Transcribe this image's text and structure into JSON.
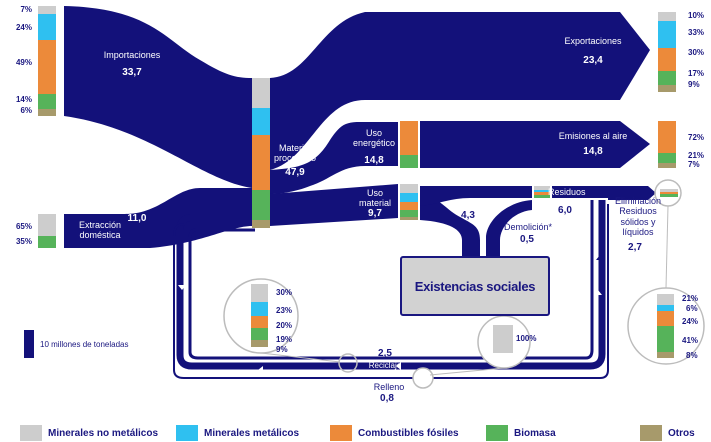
{
  "colors": {
    "flow": "#13117a",
    "minerales_no_metalicos": "#cdcdcd",
    "minerales_metalicos": "#2fc0f0",
    "combustibles_fosiles": "#ec8a3a",
    "biomasa": "#56b35a",
    "otros": "#a79a6b"
  },
  "nodes": {
    "importaciones": {
      "label": "Importaciones",
      "value": "33,7"
    },
    "extraccion": {
      "label": "Extracción doméstica",
      "value": "11,0"
    },
    "material_procesado": {
      "label": "Material procesado",
      "value": "47,9"
    },
    "exportaciones": {
      "label": "Exportaciones",
      "value": "23,4"
    },
    "uso_energetico": {
      "label": "Uso energético",
      "value": "14,8"
    },
    "emisiones": {
      "label": "Emisiones al aire",
      "value": "14,8"
    },
    "uso_material": {
      "label": "Uso material",
      "value": "9,7"
    },
    "residuos": {
      "label": "Residuos",
      "value": "6,0"
    },
    "eliminacion": {
      "label": "Eliminación Residuos sólidos y líquidos",
      "value": "2,7"
    },
    "demolicion": {
      "label": "Demolición*",
      "value": "0,5"
    },
    "existencias": {
      "label": "Existencias sociales"
    },
    "stock_flow": {
      "value": "4,3"
    },
    "reciclaje": {
      "label": "Reciclaje",
      "value": "2,5"
    },
    "relleno": {
      "label": "Relleno",
      "value": "0,8"
    }
  },
  "composition": {
    "importaciones": [
      "7%",
      "24%",
      "49%",
      "14%",
      "6%"
    ],
    "extraccion": [
      "65%",
      "35%"
    ],
    "exportaciones": [
      "10%",
      "33%",
      "30%",
      "17%",
      "9%"
    ],
    "emisiones": [
      "72%",
      "21%",
      "7%"
    ],
    "reciclaje": [
      "30%",
      "23%",
      "20%",
      "19%",
      "9%"
    ],
    "eliminacion": [
      "21%",
      "6%",
      "24%",
      "41%",
      "8%"
    ],
    "demolicion": [
      "100%"
    ]
  },
  "scale_label": "10 millones de toneladas",
  "legend": [
    {
      "label": "Minerales no metálicos",
      "color": "#cdcdcd"
    },
    {
      "label": "Minerales metálicos",
      "color": "#2fc0f0"
    },
    {
      "label": "Combustibles fósiles",
      "color": "#ec8a3a"
    },
    {
      "label": "Biomasa",
      "color": "#56b35a"
    },
    {
      "label": "Otros",
      "color": "#a79a6b"
    }
  ]
}
